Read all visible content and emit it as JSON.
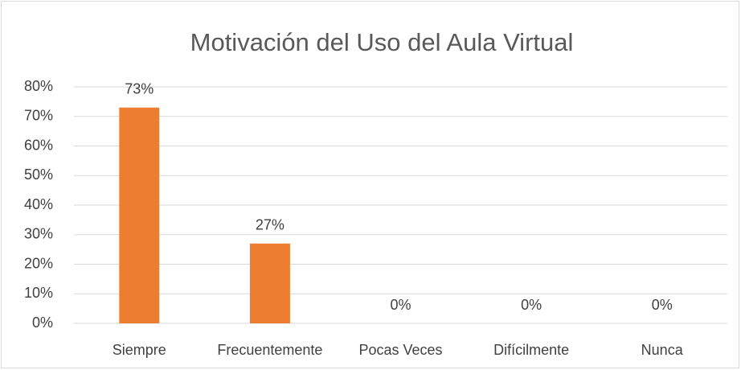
{
  "chart_data": {
    "type": "bar",
    "title": "Motivación del Uso del Aula Virtual",
    "categories": [
      "Siempre",
      "Frecuentemente",
      "Pocas Veces",
      "Difícilmente",
      "Nunca"
    ],
    "values": [
      73,
      27,
      0,
      0,
      0
    ],
    "value_labels": [
      "73%",
      "27%",
      "0%",
      "0%",
      "0%"
    ],
    "color": "#ed7d31",
    "ylim": [
      0,
      80
    ],
    "yticks": [
      {
        "value": 0,
        "label": "0%"
      },
      {
        "value": 10,
        "label": "10%"
      },
      {
        "value": 20,
        "label": "20%"
      },
      {
        "value": 30,
        "label": "30%"
      },
      {
        "value": 40,
        "label": "40%"
      },
      {
        "value": 50,
        "label": "50%"
      },
      {
        "value": 60,
        "label": "60%"
      },
      {
        "value": 70,
        "label": "70%"
      },
      {
        "value": 80,
        "label": "80%"
      }
    ],
    "grid": true
  }
}
